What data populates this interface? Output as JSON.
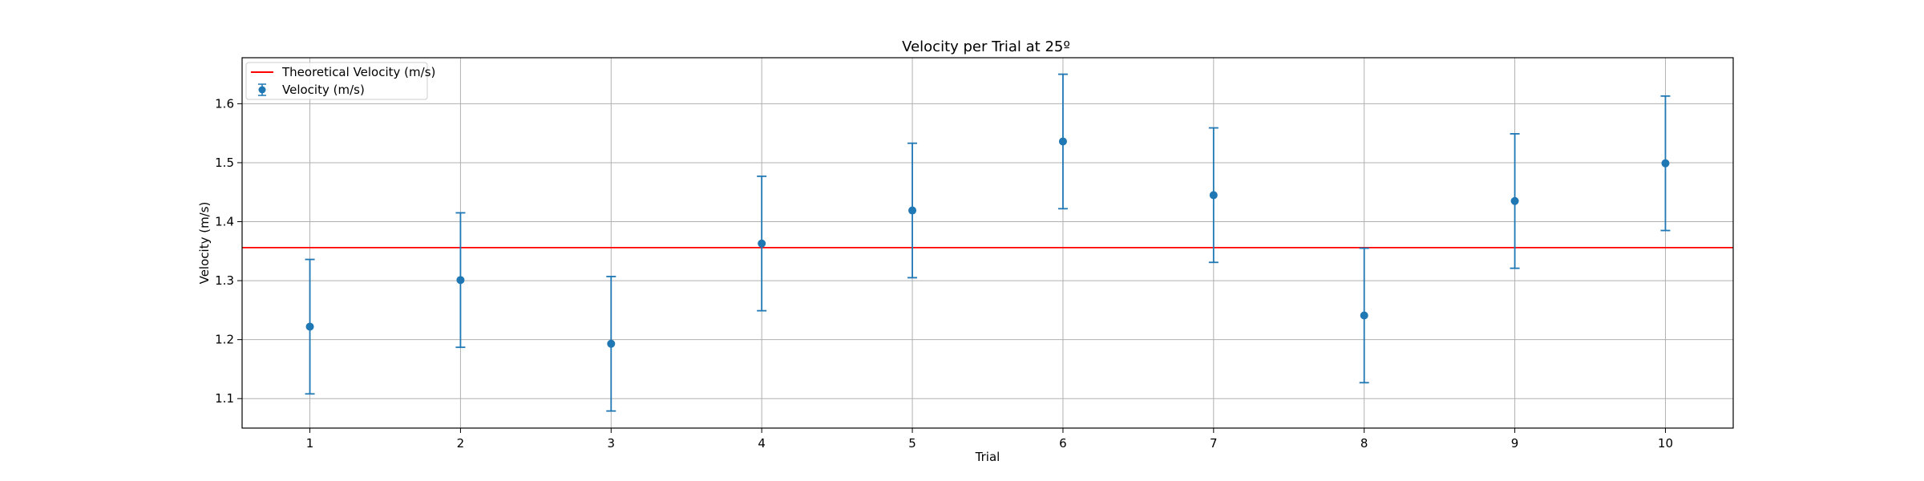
{
  "chart_data": {
    "type": "scatter",
    "title": "Velocity per Trial at 25º",
    "xlabel": "Trial",
    "ylabel": "Velocity (m/s)",
    "xlim": [
      0.55,
      10.45
    ],
    "ylim": [
      1.05,
      1.678
    ],
    "xticks": [
      1,
      2,
      3,
      4,
      5,
      6,
      7,
      8,
      9,
      10
    ],
    "yticks": [
      1.1,
      1.2,
      1.3,
      1.4,
      1.5,
      1.6
    ],
    "xtick_labels": [
      "1",
      "2",
      "3",
      "4",
      "5",
      "6",
      "7",
      "8",
      "9",
      "10"
    ],
    "ytick_labels": [
      "1.1",
      "1.2",
      "1.3",
      "1.4",
      "1.5",
      "1.6"
    ],
    "grid": true,
    "legend_position": "top-left",
    "series": [
      {
        "name": "Velocity (m/s)",
        "kind": "errorbar",
        "color": "#1f77b4",
        "x": [
          1,
          2,
          3,
          4,
          5,
          6,
          7,
          8,
          9,
          10
        ],
        "y": [
          1.222,
          1.301,
          1.193,
          1.363,
          1.419,
          1.536,
          1.445,
          1.241,
          1.435,
          1.499
        ],
        "yerr": [
          0.114,
          0.114,
          0.114,
          0.114,
          0.114,
          0.114,
          0.114,
          0.114,
          0.114,
          0.114
        ]
      },
      {
        "name": "Theoretical Velocity (m/s)",
        "kind": "hline",
        "color": "#ff0000",
        "y": 1.356
      }
    ]
  }
}
